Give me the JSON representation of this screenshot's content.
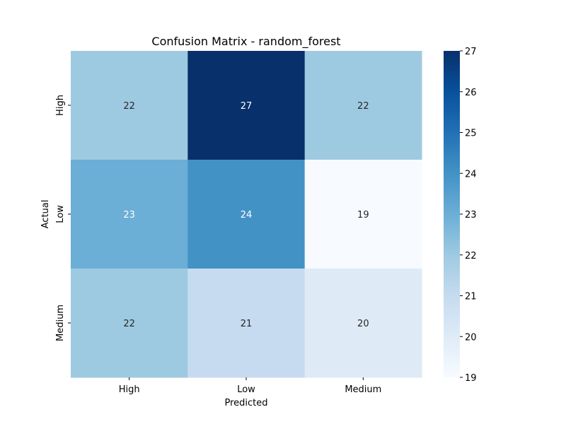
{
  "chart_data": {
    "type": "heatmap",
    "title": "Confusion Matrix - random_forest",
    "xlabel": "Predicted",
    "ylabel": "Actual",
    "x_categories": [
      "High",
      "Low",
      "Medium"
    ],
    "y_categories": [
      "High",
      "Low",
      "Medium"
    ],
    "values": [
      [
        22,
        27,
        22
      ],
      [
        23,
        24,
        19
      ],
      [
        22,
        21,
        20
      ]
    ],
    "colorbar": {
      "min": 19,
      "max": 27,
      "ticks": [
        19,
        20,
        21,
        22,
        23,
        24,
        25,
        26,
        27
      ],
      "colormap": "Blues"
    },
    "grid": false
  }
}
